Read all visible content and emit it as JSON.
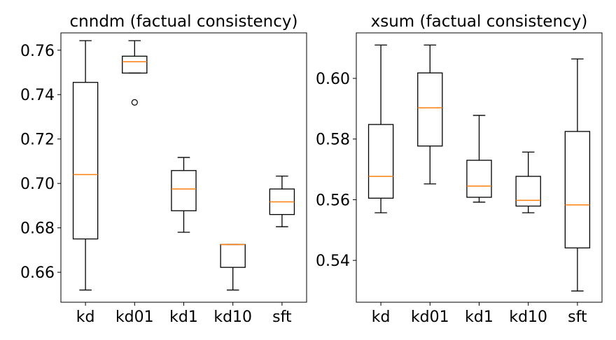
{
  "chart_data": [
    {
      "type": "box",
      "title": "cnndm (factual consistency)",
      "categories": [
        "kd",
        "kd01",
        "kd1",
        "kd10",
        "sft"
      ],
      "ylim": [
        0.6465,
        0.7678
      ],
      "yticks": [
        0.66,
        0.68,
        0.7,
        0.72,
        0.74,
        0.76
      ],
      "ytick_labels": [
        "0.66",
        "0.68",
        "0.70",
        "0.72",
        "0.74",
        "0.76"
      ],
      "boxes": [
        {
          "name": "kd",
          "whislo": 0.652,
          "q1": 0.675,
          "med": 0.704,
          "q3": 0.7455,
          "whishi": 0.7643,
          "fliers": []
        },
        {
          "name": "kd01",
          "whislo": 0.7497,
          "q1": 0.7497,
          "med": 0.7548,
          "q3": 0.7573,
          "whishi": 0.7643,
          "fliers": [
            0.7365
          ]
        },
        {
          "name": "kd1",
          "whislo": 0.678,
          "q1": 0.6877,
          "med": 0.6975,
          "q3": 0.7058,
          "whishi": 0.7117,
          "fliers": []
        },
        {
          "name": "kd10",
          "whislo": 0.652,
          "q1": 0.6622,
          "med": 0.6725,
          "q3": 0.6725,
          "whishi": 0.6725,
          "fliers": []
        },
        {
          "name": "sft",
          "whislo": 0.6805,
          "q1": 0.686,
          "med": 0.6917,
          "q3": 0.6975,
          "whishi": 0.7033,
          "fliers": []
        }
      ],
      "grid": false
    },
    {
      "type": "box",
      "title": "xsum (factual consistency)",
      "categories": [
        "kd",
        "kd01",
        "kd1",
        "kd10",
        "sft"
      ],
      "ylim": [
        0.5262,
        0.615
      ],
      "yticks": [
        0.54,
        0.56,
        0.58,
        0.6
      ],
      "ytick_labels": [
        "0.54",
        "0.56",
        "0.58",
        "0.60"
      ],
      "boxes": [
        {
          "name": "kd",
          "whislo": 0.5557,
          "q1": 0.5605,
          "med": 0.5677,
          "q3": 0.5848,
          "whishi": 0.611,
          "fliers": []
        },
        {
          "name": "kd01",
          "whislo": 0.5652,
          "q1": 0.5777,
          "med": 0.5903,
          "q3": 0.6018,
          "whishi": 0.611,
          "fliers": []
        },
        {
          "name": "kd1",
          "whislo": 0.5592,
          "q1": 0.5608,
          "med": 0.5645,
          "q3": 0.573,
          "whishi": 0.5878,
          "fliers": []
        },
        {
          "name": "kd10",
          "whislo": 0.5557,
          "q1": 0.5579,
          "med": 0.5598,
          "q3": 0.5677,
          "whishi": 0.5757,
          "fliers": []
        },
        {
          "name": "sft",
          "whislo": 0.5299,
          "q1": 0.5441,
          "med": 0.5583,
          "q3": 0.5825,
          "whishi": 0.6064,
          "fliers": []
        }
      ],
      "grid": false
    }
  ]
}
